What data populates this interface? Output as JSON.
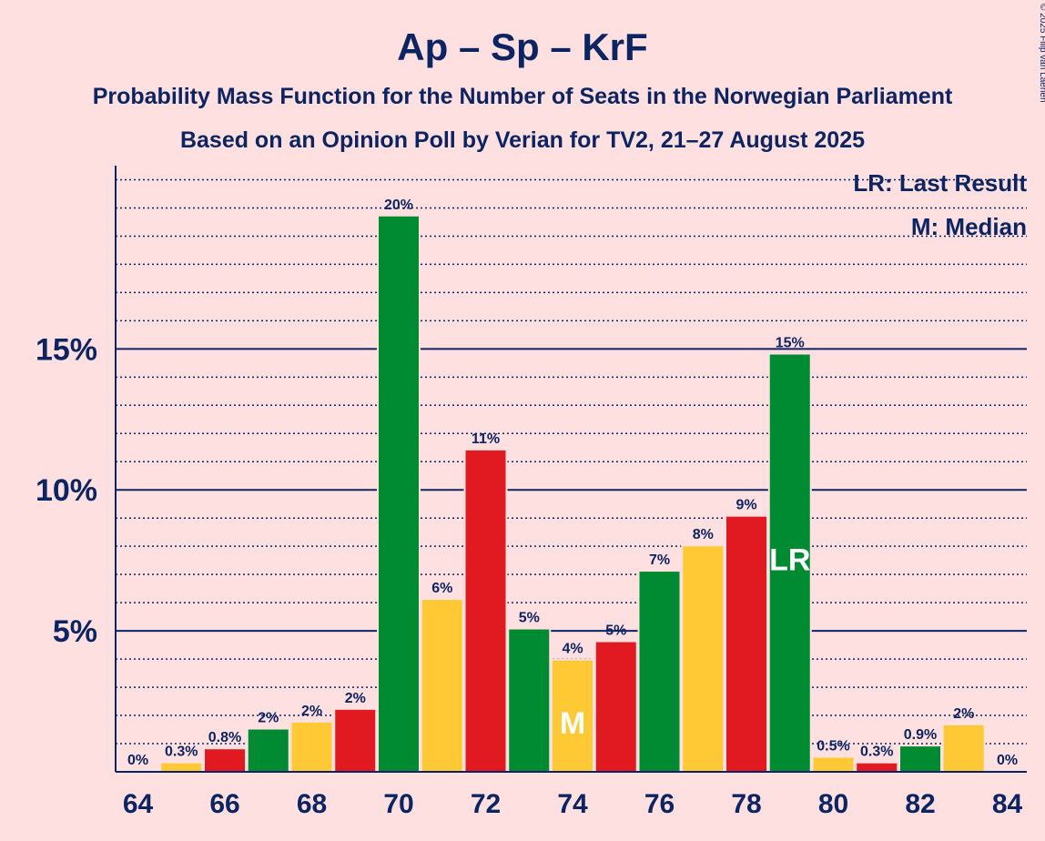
{
  "chart_data": {
    "type": "bar",
    "title": "Ap – Sp – KrF",
    "subtitle": "Probability Mass Function for the Number of Seats in the Norwegian Parliament",
    "subtitle2": "Based on an Opinion Poll by Verian for TV2, 21–27 August 2025",
    "copyright": "© 2025 Filip van Laenen",
    "legend": {
      "lr": "LR: Last Result",
      "median": "M: Median",
      "position": "top-right"
    },
    "ylim": [
      0,
      21.5
    ],
    "y_ticks": [
      {
        "value": 5,
        "label": "5%"
      },
      {
        "value": 10,
        "label": "10%"
      },
      {
        "value": 15,
        "label": "15%"
      }
    ],
    "x_ticks": [
      "64",
      "66",
      "68",
      "70",
      "72",
      "74",
      "76",
      "78",
      "80",
      "82",
      "84"
    ],
    "series": [
      {
        "name": "Probability",
        "x": [
          64,
          65,
          66,
          67,
          68,
          69,
          70,
          71,
          72,
          73,
          74,
          75,
          76,
          77,
          78,
          79,
          80,
          81,
          82,
          83,
          84
        ],
        "values": [
          0,
          0.3,
          0.8,
          1.5,
          1.75,
          2.2,
          19.7,
          6.1,
          11.4,
          5.05,
          3.95,
          4.6,
          7.1,
          8.0,
          9.05,
          14.8,
          0.5,
          0.3,
          0.9,
          1.65,
          0
        ],
        "labels": [
          "0%",
          "0.3%",
          "0.8%",
          "2%",
          "2%",
          "2%",
          "20%",
          "6%",
          "11%",
          "5%",
          "4%",
          "5%",
          "7%",
          "8%",
          "9%",
          "15%",
          "0.5%",
          "0.3%",
          "0.9%",
          "2%",
          "0%"
        ]
      }
    ],
    "colors": {
      "green": "#008A32",
      "yellow": "#FFC935",
      "red": "#E11A22",
      "axis": "#0C2461",
      "background": "#FFE0E1"
    },
    "color_cycle": [
      "green",
      "yellow",
      "red"
    ],
    "median_seat": 74,
    "median_mark": "M",
    "last_result_seat": 79,
    "last_result_mark": "LR"
  }
}
